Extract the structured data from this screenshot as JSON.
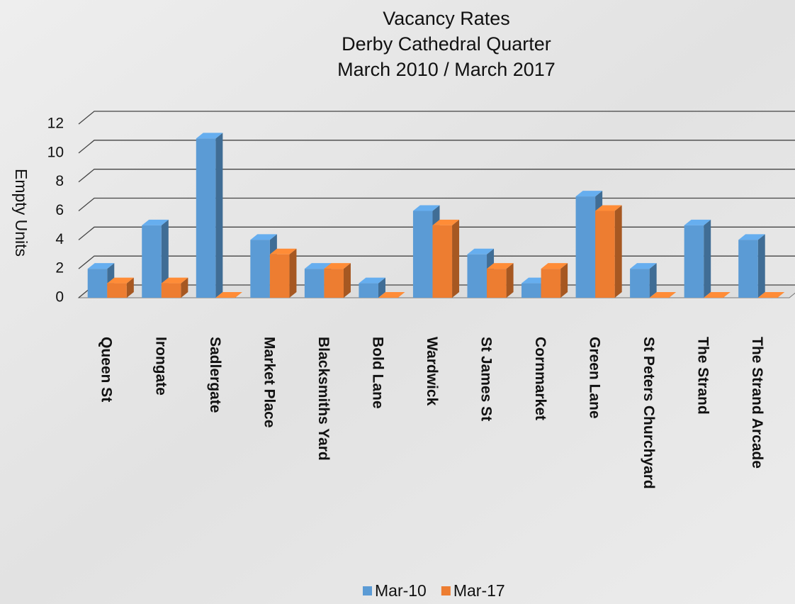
{
  "chart_data": {
    "type": "bar3d",
    "title": "Vacancy Rates",
    "subtitle": [
      "Derby Cathedral Quarter",
      "March 2010 / March 2017"
    ],
    "y_label": "Empty Units",
    "categories": [
      "Queen St",
      "Irongate",
      "Sadlergate",
      "Market Place",
      "Blacksmiths Yard",
      "Bold Lane",
      "Wardwick",
      "St James St",
      "Cornmarket",
      "Green Lane",
      "St Peters Churchyard",
      "The Strand",
      "The Strand Arcade"
    ],
    "series": [
      {
        "name": "Mar-10",
        "color": "#5b9bd5",
        "values": [
          2,
          5,
          11,
          4,
          2,
          1,
          6,
          3,
          1,
          7,
          2,
          5,
          4
        ]
      },
      {
        "name": "Mar-17",
        "color": "#ed7d31",
        "values": [
          1,
          1,
          0,
          3,
          2,
          0,
          5,
          2,
          2,
          6,
          0,
          0,
          0
        ]
      }
    ],
    "ylim": [
      0,
      12
    ],
    "yticks": [
      0,
      2,
      4,
      6,
      8,
      10,
      12
    ],
    "grid": true,
    "legend": "bottom"
  }
}
